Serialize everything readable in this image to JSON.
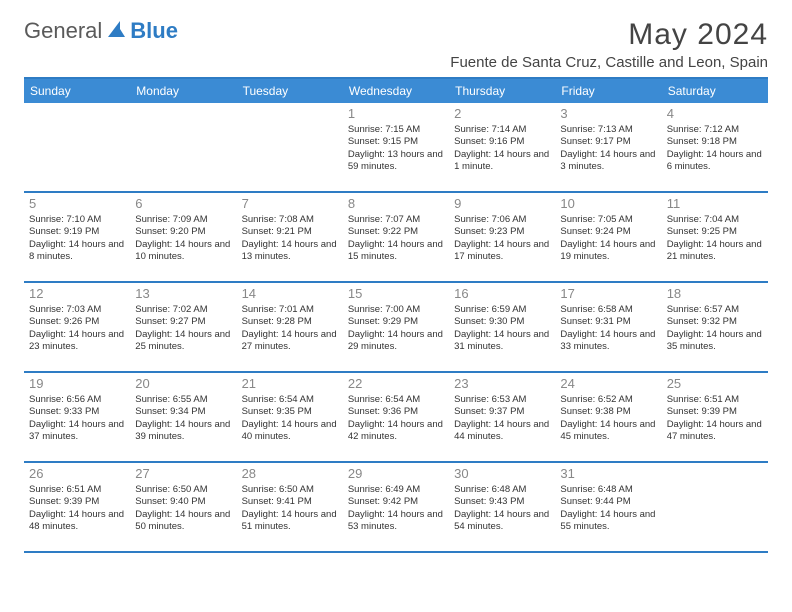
{
  "logo": {
    "general": "General",
    "blue": "Blue"
  },
  "title": "May 2024",
  "location": "Fuente de Santa Cruz, Castille and Leon, Spain",
  "colors": {
    "header_bg": "#3b8bd4",
    "border": "#2e7cc4",
    "day_num": "#888888",
    "text": "#333333",
    "title_text": "#444444",
    "logo_gray": "#5a5a5a",
    "logo_blue": "#2e7cc4",
    "background": "#ffffff"
  },
  "typography": {
    "title_fontsize": 30,
    "location_fontsize": 15,
    "header_fontsize": 12,
    "daynum_fontsize": 13,
    "cell_fontsize": 9.5
  },
  "day_headers": [
    "Sunday",
    "Monday",
    "Tuesday",
    "Wednesday",
    "Thursday",
    "Friday",
    "Saturday"
  ],
  "weeks": [
    [
      {
        "num": "",
        "lines": []
      },
      {
        "num": "",
        "lines": []
      },
      {
        "num": "",
        "lines": []
      },
      {
        "num": "1",
        "lines": [
          "Sunrise: 7:15 AM",
          "Sunset: 9:15 PM",
          "Daylight: 13 hours and 59 minutes."
        ]
      },
      {
        "num": "2",
        "lines": [
          "Sunrise: 7:14 AM",
          "Sunset: 9:16 PM",
          "Daylight: 14 hours and 1 minute."
        ]
      },
      {
        "num": "3",
        "lines": [
          "Sunrise: 7:13 AM",
          "Sunset: 9:17 PM",
          "Daylight: 14 hours and 3 minutes."
        ]
      },
      {
        "num": "4",
        "lines": [
          "Sunrise: 7:12 AM",
          "Sunset: 9:18 PM",
          "Daylight: 14 hours and 6 minutes."
        ]
      }
    ],
    [
      {
        "num": "5",
        "lines": [
          "Sunrise: 7:10 AM",
          "Sunset: 9:19 PM",
          "Daylight: 14 hours and 8 minutes."
        ]
      },
      {
        "num": "6",
        "lines": [
          "Sunrise: 7:09 AM",
          "Sunset: 9:20 PM",
          "Daylight: 14 hours and 10 minutes."
        ]
      },
      {
        "num": "7",
        "lines": [
          "Sunrise: 7:08 AM",
          "Sunset: 9:21 PM",
          "Daylight: 14 hours and 13 minutes."
        ]
      },
      {
        "num": "8",
        "lines": [
          "Sunrise: 7:07 AM",
          "Sunset: 9:22 PM",
          "Daylight: 14 hours and 15 minutes."
        ]
      },
      {
        "num": "9",
        "lines": [
          "Sunrise: 7:06 AM",
          "Sunset: 9:23 PM",
          "Daylight: 14 hours and 17 minutes."
        ]
      },
      {
        "num": "10",
        "lines": [
          "Sunrise: 7:05 AM",
          "Sunset: 9:24 PM",
          "Daylight: 14 hours and 19 minutes."
        ]
      },
      {
        "num": "11",
        "lines": [
          "Sunrise: 7:04 AM",
          "Sunset: 9:25 PM",
          "Daylight: 14 hours and 21 minutes."
        ]
      }
    ],
    [
      {
        "num": "12",
        "lines": [
          "Sunrise: 7:03 AM",
          "Sunset: 9:26 PM",
          "Daylight: 14 hours and 23 minutes."
        ]
      },
      {
        "num": "13",
        "lines": [
          "Sunrise: 7:02 AM",
          "Sunset: 9:27 PM",
          "Daylight: 14 hours and 25 minutes."
        ]
      },
      {
        "num": "14",
        "lines": [
          "Sunrise: 7:01 AM",
          "Sunset: 9:28 PM",
          "Daylight: 14 hours and 27 minutes."
        ]
      },
      {
        "num": "15",
        "lines": [
          "Sunrise: 7:00 AM",
          "Sunset: 9:29 PM",
          "Daylight: 14 hours and 29 minutes."
        ]
      },
      {
        "num": "16",
        "lines": [
          "Sunrise: 6:59 AM",
          "Sunset: 9:30 PM",
          "Daylight: 14 hours and 31 minutes."
        ]
      },
      {
        "num": "17",
        "lines": [
          "Sunrise: 6:58 AM",
          "Sunset: 9:31 PM",
          "Daylight: 14 hours and 33 minutes."
        ]
      },
      {
        "num": "18",
        "lines": [
          "Sunrise: 6:57 AM",
          "Sunset: 9:32 PM",
          "Daylight: 14 hours and 35 minutes."
        ]
      }
    ],
    [
      {
        "num": "19",
        "lines": [
          "Sunrise: 6:56 AM",
          "Sunset: 9:33 PM",
          "Daylight: 14 hours and 37 minutes."
        ]
      },
      {
        "num": "20",
        "lines": [
          "Sunrise: 6:55 AM",
          "Sunset: 9:34 PM",
          "Daylight: 14 hours and 39 minutes."
        ]
      },
      {
        "num": "21",
        "lines": [
          "Sunrise: 6:54 AM",
          "Sunset: 9:35 PM",
          "Daylight: 14 hours and 40 minutes."
        ]
      },
      {
        "num": "22",
        "lines": [
          "Sunrise: 6:54 AM",
          "Sunset: 9:36 PM",
          "Daylight: 14 hours and 42 minutes."
        ]
      },
      {
        "num": "23",
        "lines": [
          "Sunrise: 6:53 AM",
          "Sunset: 9:37 PM",
          "Daylight: 14 hours and 44 minutes."
        ]
      },
      {
        "num": "24",
        "lines": [
          "Sunrise: 6:52 AM",
          "Sunset: 9:38 PM",
          "Daylight: 14 hours and 45 minutes."
        ]
      },
      {
        "num": "25",
        "lines": [
          "Sunrise: 6:51 AM",
          "Sunset: 9:39 PM",
          "Daylight: 14 hours and 47 minutes."
        ]
      }
    ],
    [
      {
        "num": "26",
        "lines": [
          "Sunrise: 6:51 AM",
          "Sunset: 9:39 PM",
          "Daylight: 14 hours and 48 minutes."
        ]
      },
      {
        "num": "27",
        "lines": [
          "Sunrise: 6:50 AM",
          "Sunset: 9:40 PM",
          "Daylight: 14 hours and 50 minutes."
        ]
      },
      {
        "num": "28",
        "lines": [
          "Sunrise: 6:50 AM",
          "Sunset: 9:41 PM",
          "Daylight: 14 hours and 51 minutes."
        ]
      },
      {
        "num": "29",
        "lines": [
          "Sunrise: 6:49 AM",
          "Sunset: 9:42 PM",
          "Daylight: 14 hours and 53 minutes."
        ]
      },
      {
        "num": "30",
        "lines": [
          "Sunrise: 6:48 AM",
          "Sunset: 9:43 PM",
          "Daylight: 14 hours and 54 minutes."
        ]
      },
      {
        "num": "31",
        "lines": [
          "Sunrise: 6:48 AM",
          "Sunset: 9:44 PM",
          "Daylight: 14 hours and 55 minutes."
        ]
      },
      {
        "num": "",
        "lines": []
      }
    ]
  ]
}
